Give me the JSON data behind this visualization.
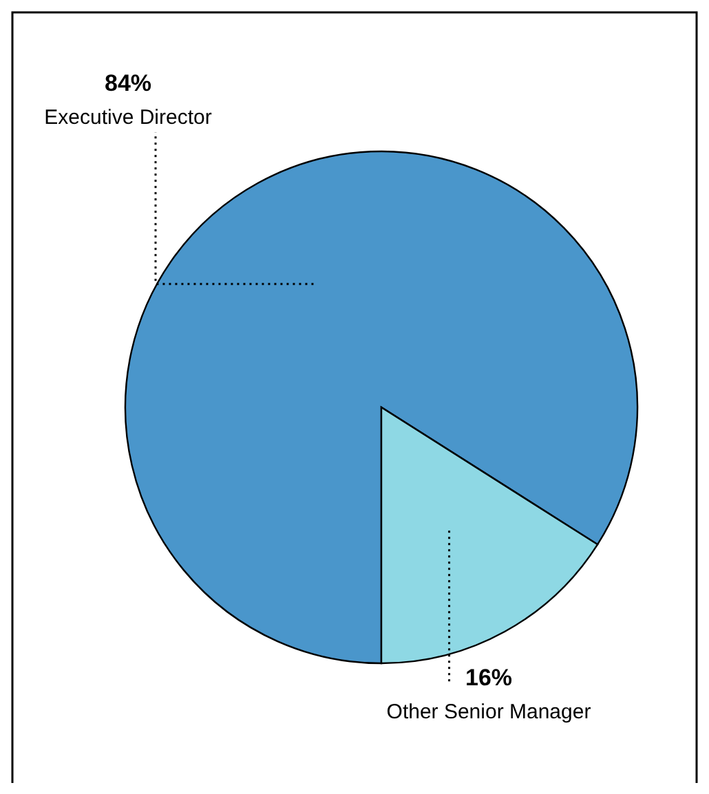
{
  "chart_data": {
    "type": "pie",
    "categories": [
      "Executive Director",
      "Other Senior Manager"
    ],
    "values": [
      84,
      16
    ],
    "colors": [
      "#4a96cb",
      "#8ed8e4"
    ],
    "value_labels": [
      "84%",
      "16%"
    ]
  }
}
